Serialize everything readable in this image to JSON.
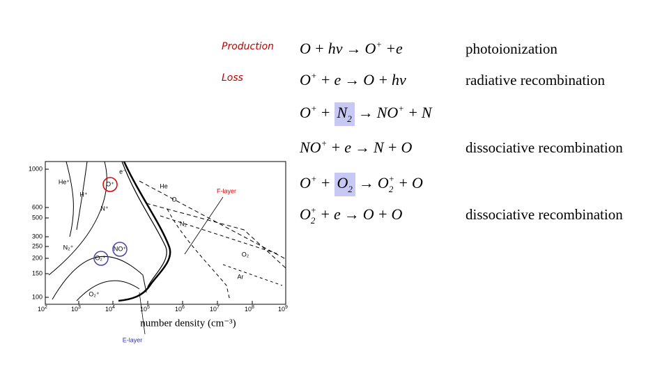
{
  "equations": [
    {
      "label": "Production",
      "tokens": [
        {
          "text": "O"
        },
        {
          "text": "+"
        },
        {
          "text": "hv"
        },
        {
          "text": "→"
        },
        {
          "text": "O",
          "sup": "+"
        },
        {
          "text": "+e"
        }
      ],
      "description": "photoionization"
    },
    {
      "label": "Loss",
      "tokens": [
        {
          "text": "O",
          "sup": "+"
        },
        {
          "text": "+"
        },
        {
          "text": "e"
        },
        {
          "text": "→"
        },
        {
          "text": "O"
        },
        {
          "text": "+"
        },
        {
          "text": "hv"
        }
      ],
      "description": "radiative recombination"
    },
    {
      "tokens": [
        {
          "text": "O",
          "sup": "+"
        },
        {
          "text": "+"
        },
        {
          "text": "N",
          "sub": "2",
          "highlight": true
        },
        {
          "text": "→"
        },
        {
          "text": "NO",
          "sup": "+"
        },
        {
          "text": "+"
        },
        {
          "text": "N"
        }
      ]
    },
    {
      "tokens": [
        {
          "text": "NO",
          "sup": "+"
        },
        {
          "text": "+"
        },
        {
          "text": "e"
        },
        {
          "text": "→"
        },
        {
          "text": "N"
        },
        {
          "text": "+"
        },
        {
          "text": "O"
        }
      ],
      "description": "dissociative recombination"
    },
    {
      "tokens": [
        {
          "text": "O",
          "sup": "+"
        },
        {
          "text": "+"
        },
        {
          "text": "O",
          "sub": "2",
          "highlight": true
        },
        {
          "text": "→"
        },
        {
          "text": "O",
          "sub": "2",
          "sup": "+"
        },
        {
          "text": "+"
        },
        {
          "text": "O"
        }
      ]
    },
    {
      "tokens": [
        {
          "text": "O",
          "sub": "2",
          "sup": "+"
        },
        {
          "text": "+"
        },
        {
          "text": "e"
        },
        {
          "text": "→"
        },
        {
          "text": "O"
        },
        {
          "text": "+"
        },
        {
          "text": "O"
        }
      ],
      "description": "dissociative recombination"
    }
  ],
  "figure": {
    "y_labels": [
      "1000",
      "600",
      "500",
      "300",
      "250",
      "200",
      "150",
      "100"
    ],
    "x_labels": [
      {
        "base": "10",
        "exp": "2"
      },
      {
        "base": "10",
        "exp": "3"
      },
      {
        "base": "10",
        "exp": "4"
      },
      {
        "base": "10",
        "exp": "5"
      },
      {
        "base": "10",
        "exp": "6"
      },
      {
        "base": "10",
        "exp": "7"
      },
      {
        "base": "10",
        "exp": "8"
      },
      {
        "base": "10",
        "exp": "9"
      }
    ],
    "x_title": "number density (cm⁻³)",
    "labels": [
      "e⁻",
      "He⁺",
      "H⁺",
      "O⁺",
      "N⁺",
      "He",
      "O",
      "N₂",
      "F-layer",
      "N₂⁺",
      "NO⁺",
      "O₂⁺",
      "O₂",
      "Ar",
      "O₂⁺",
      "E-layer"
    ]
  }
}
